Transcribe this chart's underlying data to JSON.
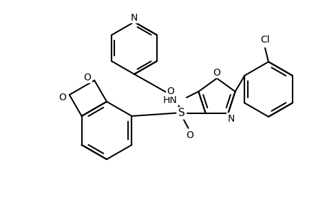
{
  "background_color": "#ffffff",
  "line_color": "#000000",
  "line_width": 1.5,
  "figsize": [
    4.6,
    3.0
  ],
  "dpi": 100,
  "xlim": [
    0,
    460
  ],
  "ylim": [
    0,
    300
  ]
}
